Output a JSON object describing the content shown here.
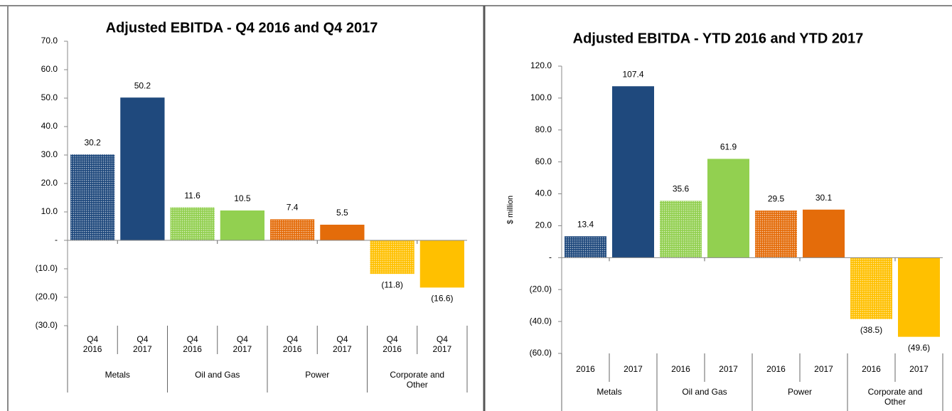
{
  "chart_data": [
    {
      "type": "bar",
      "title": "Adjusted EBITDA - Q4 2016 and Q4 2017",
      "categories": [
        "Q4 2016",
        "Q4 2017",
        "Q4 2016",
        "Q4 2017",
        "Q4 2016",
        "Q4 2017",
        "Q4 2016",
        "Q4 2017"
      ],
      "groups": [
        "Metals",
        "Oil and Gas",
        "Power",
        "Corporate and Other"
      ],
      "values": [
        30.2,
        50.2,
        11.6,
        10.5,
        7.4,
        5.5,
        -11.8,
        -16.6
      ],
      "value_labels": [
        "30.2",
        "50.2",
        "11.6",
        "10.5",
        "7.4",
        "5.5",
        "(11.8)",
        "(16.6)"
      ],
      "colors": [
        "#1f497d",
        "#1f497d",
        "#92d050",
        "#92d050",
        "#e46c0a",
        "#e46c0a",
        "#ffc000",
        "#ffc000"
      ],
      "patterns": [
        "dotted",
        "solid",
        "dotted",
        "solid",
        "dotted",
        "solid",
        "dotted",
        "solid"
      ],
      "ylim": [
        -30,
        70
      ],
      "yticks": [
        {
          "value": -30,
          "label": "(30.0)"
        },
        {
          "value": -20,
          "label": "(20.0)"
        },
        {
          "value": -10,
          "label": "(10.0)"
        },
        {
          "value": 0,
          "label": "-"
        },
        {
          "value": 10,
          "label": "10.0"
        },
        {
          "value": 20,
          "label": "20.0"
        },
        {
          "value": 30,
          "label": "30.0"
        },
        {
          "value": 40,
          "label": "40.0"
        },
        {
          "value": 50,
          "label": "50.0"
        },
        {
          "value": 60,
          "label": "60.0"
        },
        {
          "value": 70,
          "label": "70.0"
        }
      ]
    },
    {
      "type": "bar",
      "title": "Adjusted EBITDA - YTD 2016 and YTD 2017",
      "ylabel": "$ million",
      "categories": [
        "2016",
        "2017",
        "2016",
        "2017",
        "2016",
        "2017",
        "2016",
        "2017"
      ],
      "groups": [
        "Metals",
        "Oil and Gas",
        "Power",
        "Corporate and Other"
      ],
      "values": [
        13.4,
        107.4,
        35.6,
        61.9,
        29.5,
        30.1,
        -38.5,
        -49.6
      ],
      "value_labels": [
        "13.4",
        "107.4",
        "35.6",
        "61.9",
        "29.5",
        "30.1",
        "(38.5)",
        "(49.6)"
      ],
      "colors": [
        "#1f497d",
        "#1f497d",
        "#92d050",
        "#92d050",
        "#e46c0a",
        "#e46c0a",
        "#ffc000",
        "#ffc000"
      ],
      "patterns": [
        "dotted",
        "solid",
        "dotted",
        "solid",
        "dotted",
        "solid",
        "dotted",
        "solid"
      ],
      "ylim": [
        -60,
        120
      ],
      "yticks": [
        {
          "value": -60,
          "label": "(60.0)"
        },
        {
          "value": -40,
          "label": "(40.0)"
        },
        {
          "value": -20,
          "label": "(20.0)"
        },
        {
          "value": 0,
          "label": "-"
        },
        {
          "value": 20,
          "label": "20.0"
        },
        {
          "value": 40,
          "label": "40.0"
        },
        {
          "value": 60,
          "label": "60.0"
        },
        {
          "value": 80,
          "label": "80.0"
        },
        {
          "value": 100,
          "label": "100.0"
        },
        {
          "value": 120,
          "label": "120.0"
        }
      ]
    }
  ]
}
